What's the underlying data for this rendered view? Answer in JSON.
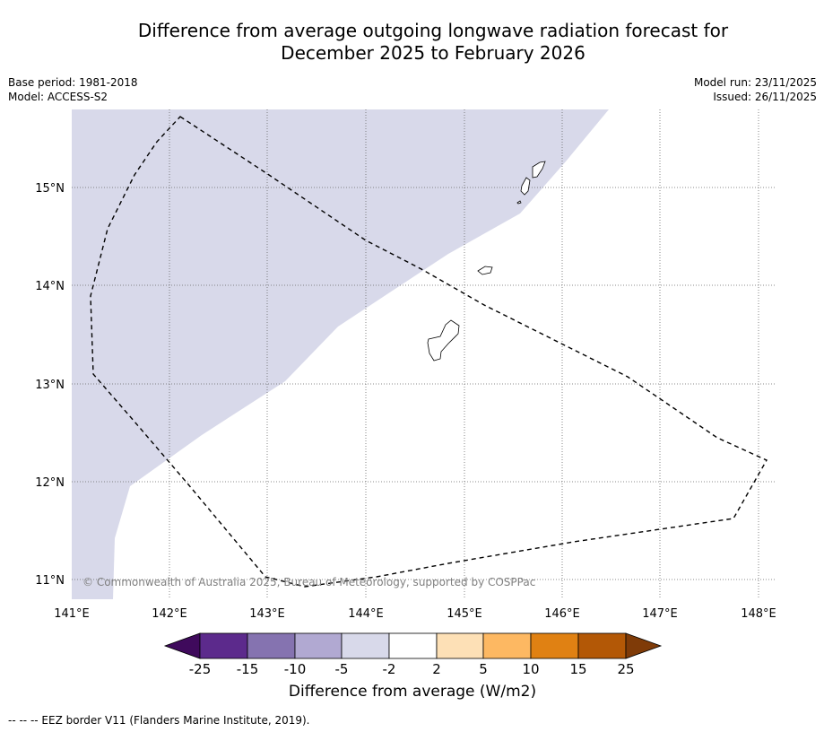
{
  "title": {
    "line1": "Difference from average outgoing longwave radiation forecast for",
    "line2": "December 2025 to February 2026"
  },
  "meta_left": {
    "base_period": "Base period: 1981-2018",
    "model": "Model: ACCESS-S2"
  },
  "meta_right": {
    "model_run": "Model run: 23/11/2025",
    "issued": "Issued: 26/11/2025"
  },
  "map": {
    "lon_labels": [
      "141°E",
      "142°E",
      "143°E",
      "144°E",
      "145°E",
      "146°E",
      "147°E",
      "148°E"
    ],
    "lat_labels": [
      "15°N",
      "14°N",
      "13°N",
      "12°N",
      "11°N"
    ],
    "copyright": "© Commonwealth of Australia 2025, Bureau of Meteorology, supported by COSPPac",
    "shaded_category": "-5 to -2",
    "shaded_color": "#d8d9ea"
  },
  "colorbar": {
    "title": "Difference from average (W/m2)",
    "tick_labels": [
      "-25",
      "-15",
      "-10",
      "-5",
      "-2",
      "2",
      "5",
      "10",
      "15",
      "25"
    ],
    "colors": [
      "#3f0a5c",
      "#5c2a8c",
      "#8573b0",
      "#b1a9d2",
      "#d8d9ea",
      "#ffffff",
      "#fde0b6",
      "#fdb862",
      "#e08113",
      "#b35806",
      "#7f3b08"
    ]
  },
  "footer": {
    "legend": "--  --  -- EEZ border V11 (Flanders Marine Institute, 2019)."
  }
}
